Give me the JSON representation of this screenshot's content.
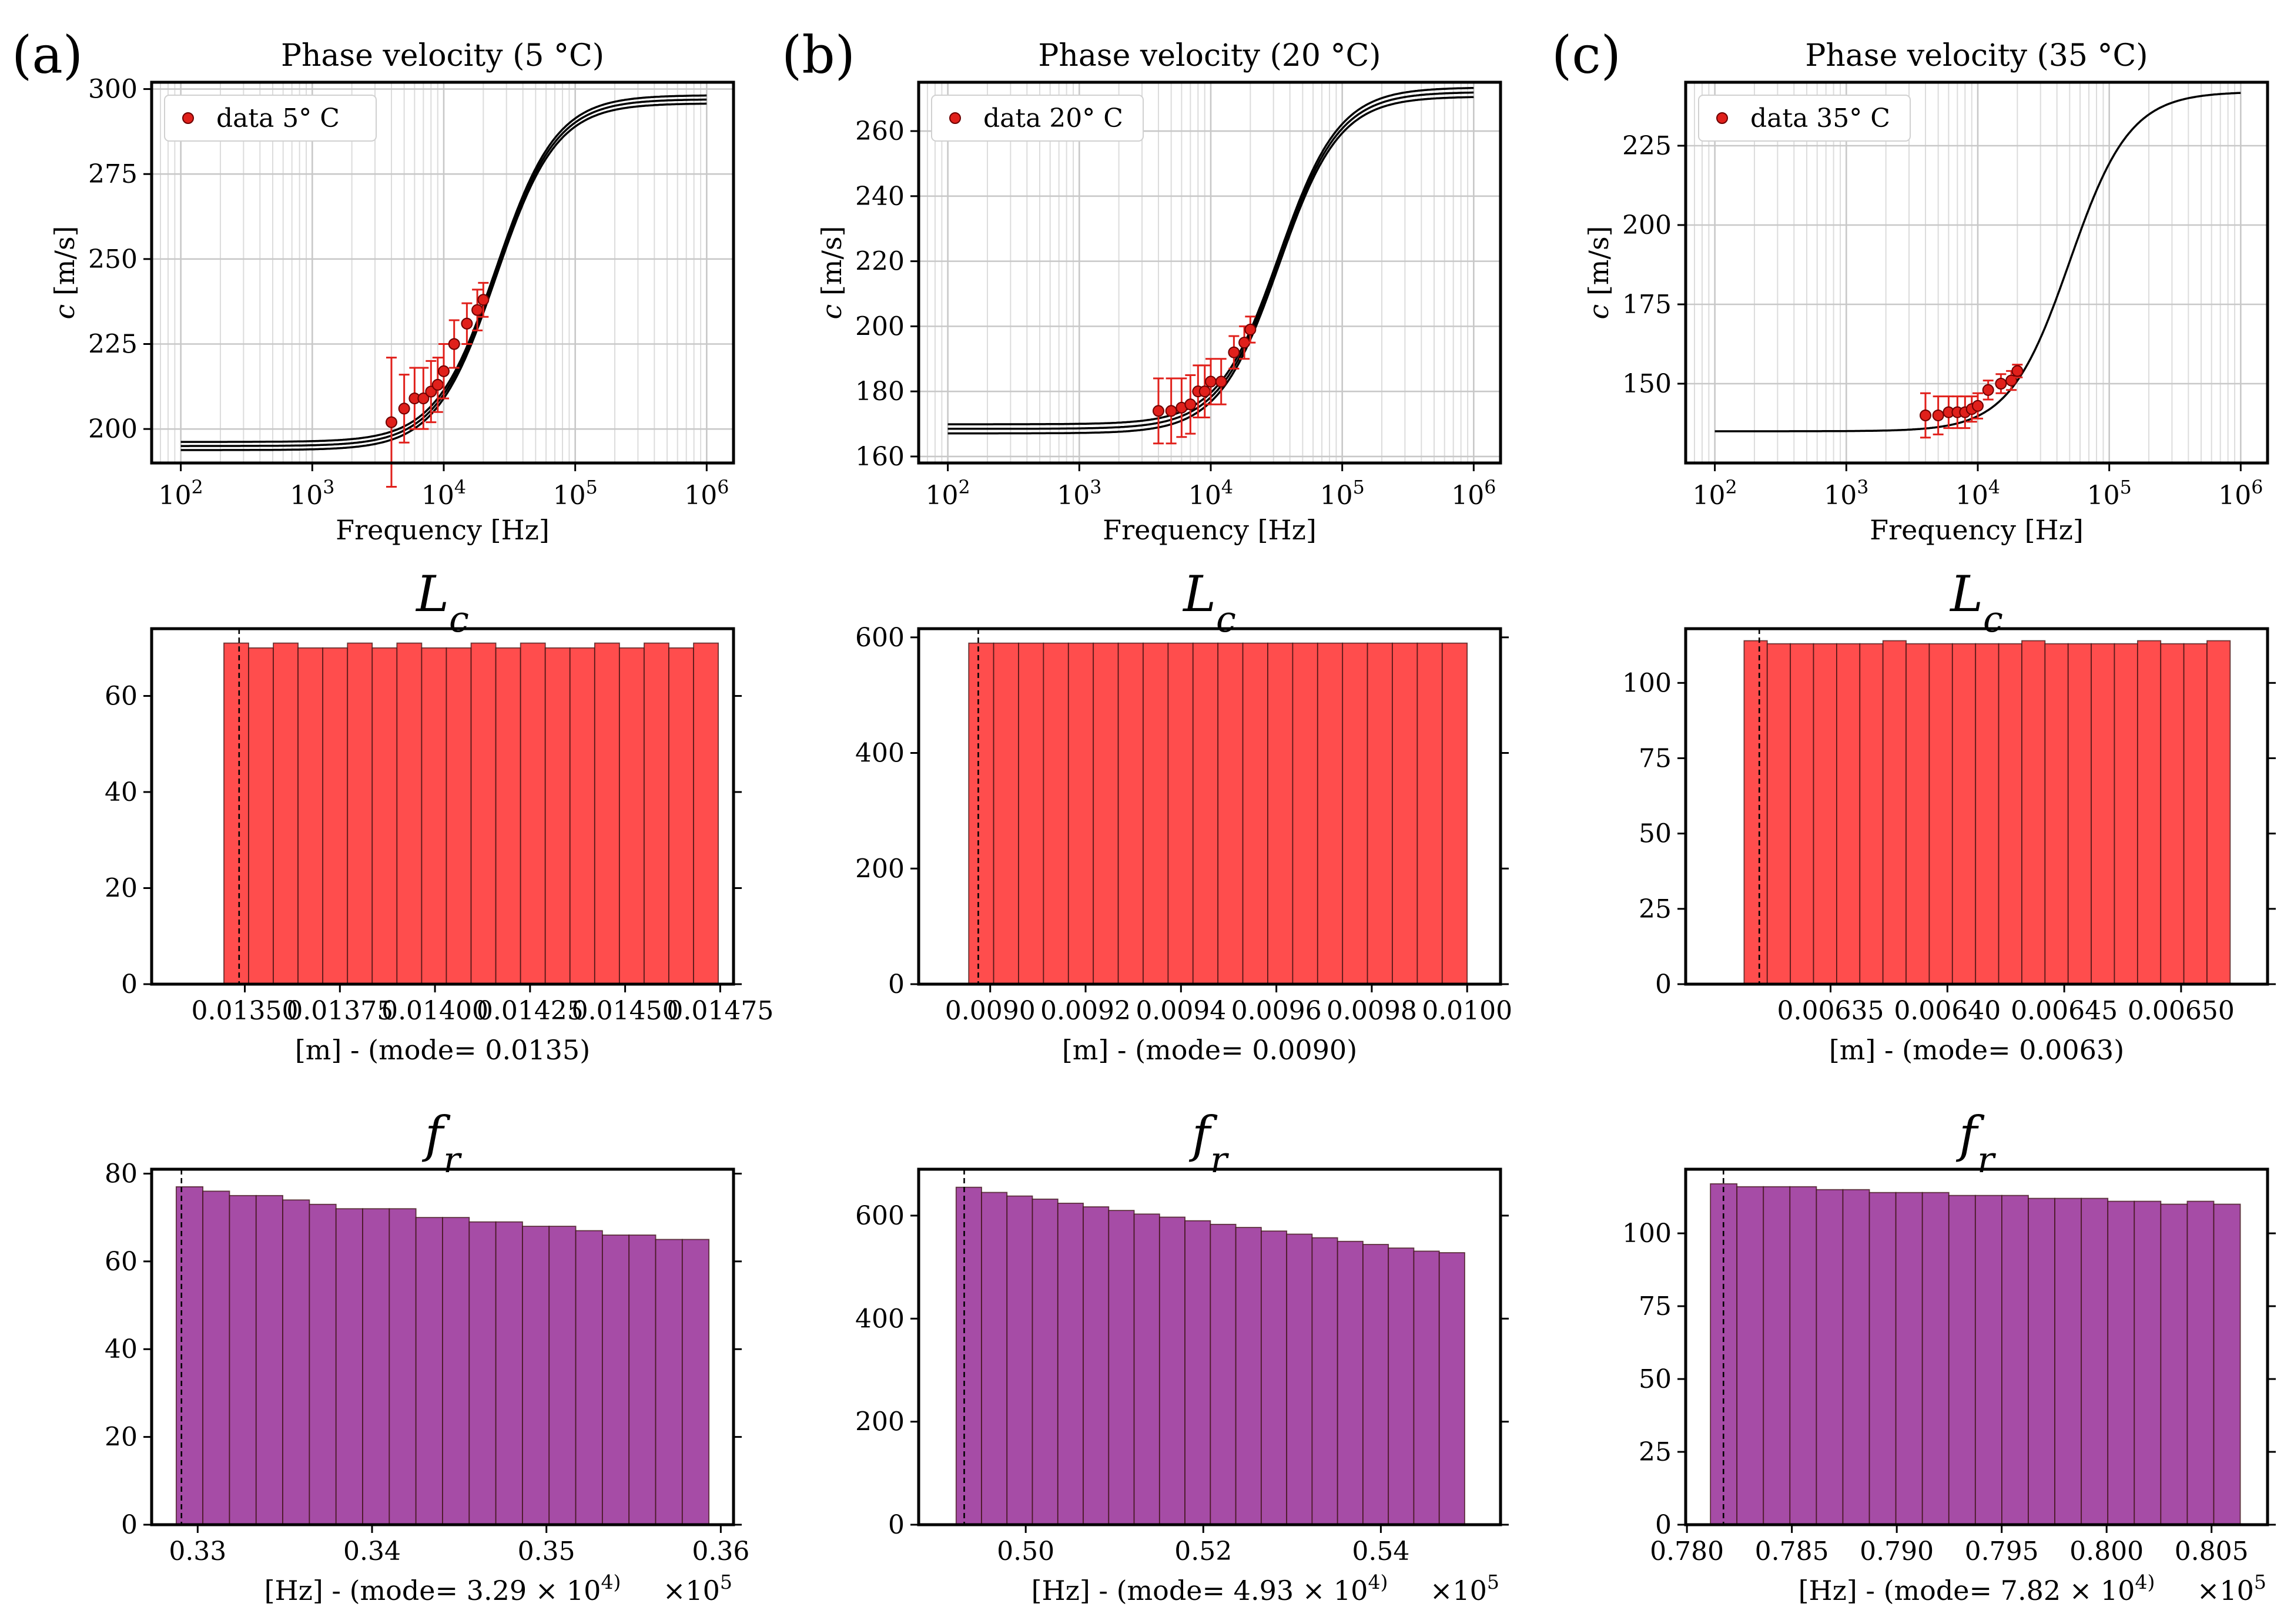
{
  "panel_labels": [
    "(a)",
    "(b)",
    "(c)"
  ],
  "chart_data": [
    {
      "type": "scatter",
      "panel": "(a)",
      "title": "Phase velocity (5 °C)",
      "xlabel": "Frequency [Hz]",
      "ylabel": "c [m/s]",
      "xscale": "log",
      "xlim": [
        60,
        1600000
      ],
      "ylim": [
        190,
        302
      ],
      "xticks": [
        100,
        1000,
        10000,
        100000,
        1000000
      ],
      "xticklabels": [
        "10^2",
        "10^3",
        "10^4",
        "10^5",
        "10^6"
      ],
      "yticks": [
        200,
        225,
        250,
        275,
        300
      ],
      "yticklabels": [
        "200",
        "225",
        "250",
        "275",
        "300"
      ],
      "grid": true,
      "legend_placement": "top-left",
      "legend": "data 5° C",
      "curve": {
        "low": 195,
        "high": 297,
        "fc": 25000,
        "band": 1.2
      },
      "points": [
        {
          "x": 4000,
          "y": 202,
          "err": 19
        },
        {
          "x": 5000,
          "y": 206,
          "err": 10
        },
        {
          "x": 6000,
          "y": 209,
          "err": 9
        },
        {
          "x": 7000,
          "y": 209,
          "err": 9
        },
        {
          "x": 8000,
          "y": 211,
          "err": 9
        },
        {
          "x": 9000,
          "y": 213,
          "err": 8
        },
        {
          "x": 10000,
          "y": 217,
          "err": 8
        },
        {
          "x": 12000,
          "y": 225,
          "err": 7
        },
        {
          "x": 15000,
          "y": 231,
          "err": 6
        },
        {
          "x": 18000,
          "y": 235,
          "err": 6
        },
        {
          "x": 20000,
          "y": 238,
          "err": 5
        }
      ]
    },
    {
      "type": "scatter",
      "panel": "(b)",
      "title": "Phase velocity (20 °C)",
      "xlabel": "Frequency [Hz]",
      "ylabel": "c [m/s]",
      "xscale": "log",
      "xlim": [
        60,
        1600000
      ],
      "ylim": [
        158,
        275
      ],
      "xticks": [
        100,
        1000,
        10000,
        100000,
        1000000
      ],
      "xticklabels": [
        "10^2",
        "10^3",
        "10^4",
        "10^5",
        "10^6"
      ],
      "yticks": [
        160,
        180,
        200,
        220,
        240,
        260
      ],
      "yticklabels": [
        "160",
        "180",
        "200",
        "220",
        "240",
        "260"
      ],
      "grid": true,
      "legend_placement": "top-left",
      "legend": "data 20° C",
      "curve": {
        "low": 168.5,
        "high": 272,
        "fc": 33000,
        "band": 1.4
      },
      "points": [
        {
          "x": 4000,
          "y": 174,
          "err": 10
        },
        {
          "x": 5000,
          "y": 174,
          "err": 10
        },
        {
          "x": 6000,
          "y": 175,
          "err": 9
        },
        {
          "x": 7000,
          "y": 176,
          "err": 9
        },
        {
          "x": 8000,
          "y": 180,
          "err": 8
        },
        {
          "x": 9000,
          "y": 180,
          "err": 8
        },
        {
          "x": 10000,
          "y": 183,
          "err": 7
        },
        {
          "x": 12000,
          "y": 183,
          "err": 7
        },
        {
          "x": 15000,
          "y": 192,
          "err": 5
        },
        {
          "x": 18000,
          "y": 195,
          "err": 5
        },
        {
          "x": 20000,
          "y": 199,
          "err": 4
        }
      ]
    },
    {
      "type": "scatter",
      "panel": "(c)",
      "title": "Phase velocity (35 °C)",
      "xlabel": "Frequency [Hz]",
      "ylabel": "c [m/s]",
      "xscale": "log",
      "xlim": [
        60,
        1600000
      ],
      "ylim": [
        125,
        245
      ],
      "xticks": [
        100,
        1000,
        10000,
        100000,
        1000000
      ],
      "xticklabels": [
        "10^2",
        "10^3",
        "10^4",
        "10^5",
        "10^6"
      ],
      "yticks": [
        150,
        175,
        200,
        225
      ],
      "yticklabels": [
        "150",
        "175",
        "200",
        "225"
      ],
      "grid": true,
      "legend_placement": "top-left",
      "legend": "data 35° C",
      "curve": {
        "low": 135,
        "high": 242,
        "fc": 50000,
        "band": 0
      },
      "points": [
        {
          "x": 4000,
          "y": 140,
          "err": 7
        },
        {
          "x": 5000,
          "y": 140,
          "err": 6
        },
        {
          "x": 6000,
          "y": 141,
          "err": 5
        },
        {
          "x": 7000,
          "y": 141,
          "err": 5
        },
        {
          "x": 8000,
          "y": 141,
          "err": 5
        },
        {
          "x": 9000,
          "y": 142,
          "err": 4
        },
        {
          "x": 10000,
          "y": 143,
          "err": 4
        },
        {
          "x": 12000,
          "y": 148,
          "err": 3
        },
        {
          "x": 15000,
          "y": 150,
          "err": 3
        },
        {
          "x": 18000,
          "y": 151,
          "err": 3
        },
        {
          "x": 20000,
          "y": 154,
          "err": 2
        }
      ]
    },
    {
      "type": "bar",
      "panel": "(a)",
      "title": "L_c",
      "xlabel": "[m] - (mode= 0.0135)",
      "color": "#ff4d4d",
      "xlim": [
        0.013255,
        0.014785
      ],
      "ylim": [
        0,
        74
      ],
      "bins": [
        0.013445,
        0.014745
      ],
      "counts": [
        71,
        70,
        71,
        70,
        70,
        71,
        70,
        71,
        70,
        70,
        71,
        70,
        71,
        70,
        70,
        71,
        70,
        71,
        70,
        71
      ],
      "mode": 0.013485,
      "xticks": [
        0.0135,
        0.01375,
        0.014,
        0.01425,
        0.0145,
        0.01475
      ],
      "xticklabels": [
        "0.01350",
        "0.01375",
        "0.01400",
        "0.01425",
        "0.01450",
        "0.01475"
      ],
      "yticks": [
        0,
        20,
        40,
        60
      ],
      "yticklabels": [
        "0",
        "20",
        "40",
        "60"
      ]
    },
    {
      "type": "bar",
      "panel": "(b)",
      "title": "L_c",
      "xlabel": "[m] - (mode= 0.0090)",
      "color": "#ff4d4d",
      "xlim": [
        0.00885,
        0.01007
      ],
      "ylim": [
        0,
        615
      ],
      "bins": [
        0.008955,
        0.01
      ],
      "counts": [
        590,
        590,
        590,
        590,
        590,
        590,
        590,
        590,
        590,
        590,
        590,
        590,
        590,
        590,
        590,
        590,
        590,
        590,
        590,
        590
      ],
      "mode": 0.008975,
      "xticks": [
        0.009,
        0.0092,
        0.0094,
        0.0096,
        0.0098,
        0.01
      ],
      "xticklabels": [
        "0.0090",
        "0.0092",
        "0.0094",
        "0.0096",
        "0.0098",
        "0.0100"
      ],
      "yticks": [
        0,
        200,
        400,
        600
      ],
      "yticklabels": [
        "0",
        "200",
        "400",
        "600"
      ]
    },
    {
      "type": "bar",
      "panel": "(c)",
      "title": "L_c",
      "xlabel": "[m] - (mode= 0.0063)",
      "color": "#ff4d4d",
      "xlim": [
        0.006288,
        0.006537
      ],
      "ylim": [
        0,
        118
      ],
      "bins": [
        0.006313,
        0.006521
      ],
      "counts": [
        114,
        113,
        113,
        113,
        113,
        113,
        114,
        113,
        113,
        113,
        113,
        113,
        114,
        113,
        113,
        113,
        113,
        114,
        113,
        113,
        114
      ],
      "mode": 0.0063195,
      "xticks": [
        0.00635,
        0.0064,
        0.00645,
        0.0065
      ],
      "xticklabels": [
        "0.00635",
        "0.00640",
        "0.00645",
        "0.00650"
      ],
      "yticks": [
        0,
        25,
        50,
        75,
        100
      ],
      "yticklabels": [
        "0",
        "25",
        "50",
        "75",
        "100"
      ]
    },
    {
      "type": "bar",
      "panel": "(a)",
      "title": "f_r",
      "xlabel": "[Hz] - (mode= 3.29 × 10^4)",
      "offset": "×10^5",
      "color": "#a64ca6",
      "xlim": [
        0.32736,
        0.36073
      ],
      "ylim": [
        0,
        81
      ],
      "bins": [
        0.32877,
        0.35932
      ],
      "counts": [
        77,
        76,
        75,
        75,
        74,
        73,
        72,
        72,
        72,
        70,
        70,
        69,
        69,
        68,
        68,
        67,
        66,
        66,
        65,
        65
      ],
      "mode": 0.32907,
      "xticks": [
        0.33,
        0.34,
        0.35,
        0.36
      ],
      "xticklabels": [
        "0.33",
        "0.34",
        "0.35",
        "0.36"
      ],
      "yticks": [
        0,
        20,
        40,
        60,
        80
      ],
      "yticklabels": [
        "0",
        "20",
        "40",
        "60",
        "80"
      ]
    },
    {
      "type": "bar",
      "panel": "(b)",
      "title": "f_r",
      "xlabel": "[Hz] - (mode= 4.93 × 10^4)",
      "offset": "×10^5",
      "color": "#a64ca6",
      "xlim": [
        0.48794,
        0.55348
      ],
      "ylim": [
        0,
        690
      ],
      "bins": [
        0.49216,
        0.54944
      ],
      "counts": [
        655,
        645,
        638,
        632,
        624,
        617,
        610,
        603,
        597,
        590,
        583,
        577,
        570,
        564,
        557,
        550,
        544,
        537,
        531,
        528
      ],
      "mode": 0.49307,
      "xticks": [
        0.5,
        0.52,
        0.54
      ],
      "xticklabels": [
        "0.50",
        "0.52",
        "0.54"
      ],
      "yticks": [
        0,
        200,
        400,
        600
      ],
      "yticklabels": [
        "0",
        "200",
        "400",
        "600"
      ]
    },
    {
      "type": "bar",
      "panel": "(c)",
      "title": "f_r",
      "xlabel": "[Hz] - (mode= 7.82 × 10^4)",
      "offset": "×10^5",
      "color": "#a64ca6",
      "xlim": [
        0.77994,
        0.80767
      ],
      "ylim": [
        0,
        122
      ],
      "bins": [
        0.78112,
        0.80637
      ],
      "counts": [
        117,
        116,
        116,
        116,
        115,
        115,
        114,
        114,
        114,
        113,
        113,
        113,
        112,
        112,
        112,
        111,
        111,
        110,
        111,
        110
      ],
      "mode": 0.78174,
      "xticks": [
        0.78,
        0.785,
        0.79,
        0.795,
        0.8,
        0.805
      ],
      "xticklabels": [
        "0.780",
        "0.785",
        "0.790",
        "0.795",
        "0.800",
        "0.805"
      ],
      "yticks": [
        0,
        25,
        50,
        75,
        100
      ],
      "yticklabels": [
        "0",
        "25",
        "50",
        "75",
        "100"
      ]
    }
  ]
}
